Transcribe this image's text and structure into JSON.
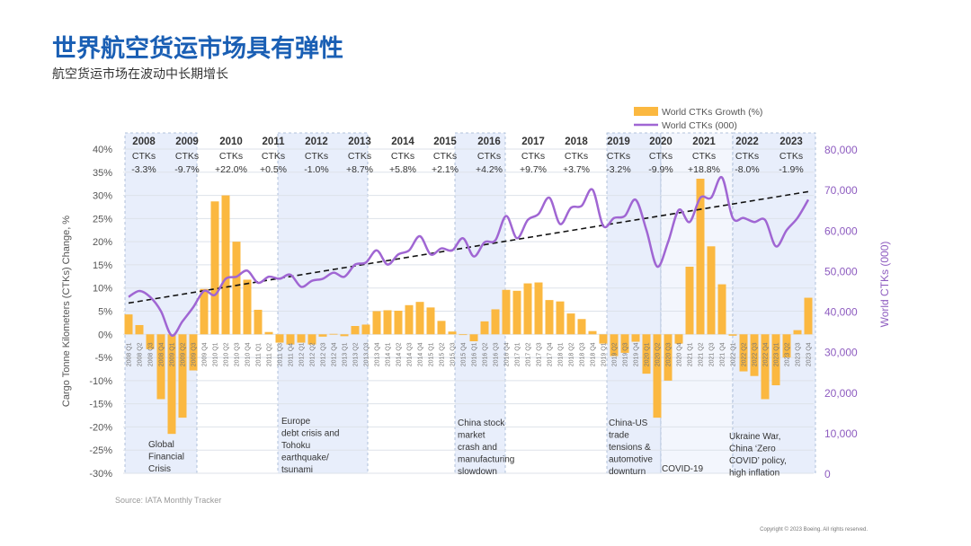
{
  "header": {
    "title": "世界航空货运市场具有弹性",
    "subtitle": "航空货运市场在波动中长期增长"
  },
  "footer": {
    "source": "Source: IATA Monthly Tracker",
    "copyright": "Copyright © 2023 Boeing. All rights reserved."
  },
  "colors": {
    "bars": "#fbb840",
    "line": "#a066d3",
    "trend": "#111111",
    "shade": "#e8eefb",
    "left_axis_text": "#555555",
    "right_axis_text": "#8e5cc0"
  },
  "chart_data": {
    "type": "bar+line",
    "ylabel": "Cargo Tonne Kilometers (CTKs) Change, %",
    "y2label": "World CTKs (000)",
    "ylim": [
      -30,
      40
    ],
    "y2lim": [
      0,
      80000
    ],
    "yticks": [
      "-30%",
      "-25%",
      "-20%",
      "-15%",
      "-10%",
      "-5%",
      "0%",
      "5%",
      "10%",
      "15%",
      "20%",
      "25%",
      "30%",
      "35%",
      "40%"
    ],
    "y2ticks": [
      "0",
      "10,000",
      "20,000",
      "30,000",
      "40,000",
      "50,000",
      "60,000",
      "70,000",
      "80,000"
    ],
    "grid": true,
    "legend": {
      "placement": "top-right",
      "entries": [
        "World CTKs Growth (%)",
        "World CTKs (000)"
      ]
    },
    "categories": [
      "2008 Q1",
      "2008 Q2",
      "2008 Q3",
      "2008 Q4",
      "2009 Q1",
      "2009 Q2",
      "2009 Q3",
      "2009 Q4",
      "2010 Q1",
      "2010 Q2",
      "2010 Q3",
      "2010 Q4",
      "2011 Q1",
      "2011 Q2",
      "2011 Q3",
      "2011 Q4",
      "2012 Q1",
      "2012 Q2",
      "2012 Q3",
      "2012 Q4",
      "2013 Q1",
      "2013 Q2",
      "2013 Q3",
      "2013 Q4",
      "2014 Q1",
      "2014 Q2",
      "2014 Q3",
      "2014 Q4",
      "2015 Q1",
      "2015 Q2",
      "2015 Q3",
      "2015 Q4",
      "2016 Q1",
      "2016 Q2",
      "2016 Q3",
      "2016 Q4",
      "2017 Q1",
      "2017 Q2",
      "2017 Q3",
      "2017 Q4",
      "2018 Q1",
      "2018 Q2",
      "2018 Q3",
      "2018 Q4",
      "2019 Q1",
      "2019 Q2",
      "2019 Q3",
      "2019 Q4",
      "2020 Q1",
      "2020 Q2",
      "2020 Q3",
      "2020 Q4",
      "2021 Q1",
      "2021 Q2",
      "2021 Q3",
      "2021 Q4",
      "2022 Q1",
      "2022 Q2",
      "2022 Q3",
      "2022 Q4",
      "2023 Q1",
      "2023 Q2",
      "2023 Q3",
      "2023 Q4"
    ],
    "series": [
      {
        "name": "World CTKs Growth (%)",
        "type": "bar",
        "axis": "left",
        "values": [
          4.3,
          2.0,
          -3.2,
          -14,
          -21.5,
          -18,
          -7.8,
          9.8,
          28.7,
          30,
          20,
          11.8,
          5.3,
          0.5,
          -1.8,
          -2.2,
          -1.8,
          -2.2,
          -0.5,
          0.1,
          -0.4,
          1.8,
          2.1,
          5.0,
          5.2,
          5.1,
          6.3,
          7.0,
          5.8,
          2.9,
          0.6,
          0.0,
          -1.5,
          2.8,
          5.4,
          9.6,
          9.4,
          11.0,
          11.2,
          7.4,
          7.1,
          4.5,
          3.3,
          0.7,
          -2.0,
          -4.7,
          -4.0,
          -1.6,
          -8.5,
          -18,
          -10,
          -2.0,
          14.6,
          33.6,
          19,
          10.8,
          -0.3,
          -8,
          -9,
          -14,
          -11,
          -5,
          0.9,
          7.9
        ]
      },
      {
        "name": "World CTKs (000)",
        "type": "line",
        "axis": "right",
        "values": [
          43500,
          45000,
          43500,
          40000,
          34000,
          37500,
          41000,
          45000,
          44000,
          48000,
          48500,
          50000,
          47000,
          48500,
          48000,
          49000,
          46000,
          47500,
          48000,
          49500,
          48500,
          51500,
          52000,
          55000,
          51500,
          54000,
          55000,
          58500,
          54000,
          55500,
          55000,
          58000,
          53500,
          57000,
          57500,
          63500,
          58000,
          62500,
          64000,
          68000,
          61500,
          65500,
          66000,
          70000,
          61000,
          63000,
          63500,
          67500,
          60000,
          51000,
          57000,
          65000,
          62000,
          68000,
          68000,
          73000,
          63000,
          63000,
          62000,
          62500,
          56000,
          60000,
          63000,
          67500
        ]
      }
    ],
    "trend": {
      "axis": "right",
      "start": 42000,
      "end": 69500
    },
    "years": [
      {
        "year": "2008",
        "label": "CTKs",
        "change": "-3.3%"
      },
      {
        "year": "2009",
        "label": "CTKs",
        "change": "-9.7%"
      },
      {
        "year": "2010",
        "label": "CTKs",
        "change": "+22.0%"
      },
      {
        "year": "2011",
        "label": "CTKs",
        "change": "+0.5%"
      },
      {
        "year": "2012",
        "label": "CTKs",
        "change": "-1.0%"
      },
      {
        "year": "2013",
        "label": "CTKs",
        "change": "+8.7%"
      },
      {
        "year": "2014",
        "label": "CTKs",
        "change": "+5.8%"
      },
      {
        "year": "2015",
        "label": "CTKs",
        "change": "+2.1%"
      },
      {
        "year": "2016",
        "label": "CTKs",
        "change": "+4.2%"
      },
      {
        "year": "2017",
        "label": "CTKs",
        "change": "+9.7%"
      },
      {
        "year": "2018",
        "label": "CTKs",
        "change": "+3.7%"
      },
      {
        "year": "2019",
        "label": "CTKs",
        "change": "-3.2%"
      },
      {
        "year": "2020",
        "label": "CTKs",
        "change": "-9.9%"
      },
      {
        "year": "2021",
        "label": "CTKs",
        "change": "+18.8%"
      },
      {
        "year": "2022",
        "label": "CTKs",
        "change": "-8.0%"
      },
      {
        "year": "2023",
        "label": "CTKs",
        "change": "-1.9%"
      }
    ],
    "annotations": [
      {
        "lines": [
          "Global",
          "Financial",
          "Crisis"
        ]
      },
      {
        "lines": [
          "Europe",
          "debt crisis and",
          "Tohoku",
          "earthquake/",
          "tsunami"
        ]
      },
      {
        "lines": [
          "China stock",
          "market",
          "crash and",
          "manufacturing",
          "slowdown"
        ]
      },
      {
        "lines": [
          "China-US",
          "trade",
          "tensions &",
          "automotive",
          "downturn"
        ]
      },
      {
        "lines": [
          "COVID-19"
        ]
      },
      {
        "lines": [
          "Ukraine War,",
          "China ‘Zero",
          "COVID’ policy,",
          "high inflation"
        ]
      }
    ]
  }
}
